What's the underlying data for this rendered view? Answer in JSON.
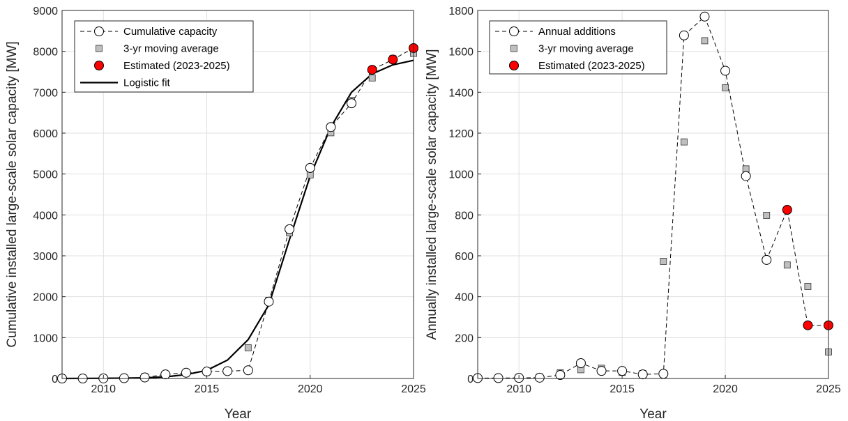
{
  "colors": {
    "estimated": "#ff0000",
    "moving_average": "#bfbfbf",
    "marker_edge": "#000000",
    "dashed_line": "#000000",
    "fit_line": "#000000",
    "grid": "#e0e0e0"
  },
  "chart_data": [
    {
      "type": "line",
      "xlabel": "Year",
      "ylabel": "Cumulative installed large-scale solar capacity [MW]",
      "xlim": [
        2008,
        2025
      ],
      "ylim": [
        0,
        9000
      ],
      "xticks": [
        2010,
        2015,
        2020,
        2025
      ],
      "yticks": [
        0,
        1000,
        2000,
        3000,
        4000,
        5000,
        6000,
        7000,
        8000,
        9000
      ],
      "grid": true,
      "legend_location": "top-left",
      "x": [
        2008,
        2009,
        2010,
        2011,
        2012,
        2013,
        2014,
        2015,
        2016,
        2017,
        2018,
        2019,
        2020,
        2021,
        2022,
        2023,
        2024,
        2025
      ],
      "series": [
        {
          "name": "Cumulative capacity",
          "style": "dashed-line-open-circles",
          "x": [
            2008,
            2009,
            2010,
            2011,
            2012,
            2013,
            2014,
            2015,
            2016,
            2017,
            2018,
            2019,
            2020,
            2021,
            2022,
            2023,
            2024,
            2025
          ],
          "values": [
            0,
            0,
            3,
            8,
            25,
            100,
            140,
            170,
            180,
            200,
            1880,
            3650,
            5150,
            6150,
            6730,
            7550,
            7800,
            8080
          ]
        },
        {
          "name": "3-yr moving average",
          "style": "gray-squares",
          "x": [
            2008,
            2009,
            2010,
            2011,
            2012,
            2013,
            2014,
            2015,
            2016,
            2017,
            2018,
            2019,
            2020,
            2021,
            2022,
            2023,
            2024,
            2025
          ],
          "values": [
            0,
            1,
            5,
            10,
            45,
            85,
            135,
            163,
            183,
            750,
            1910,
            3560,
            4980,
            6010,
            6800,
            7350,
            7820,
            7950
          ]
        },
        {
          "name": "Estimated (2023-2025)",
          "style": "red-circles",
          "x": [
            2023,
            2024,
            2025
          ],
          "values": [
            7550,
            7800,
            8080
          ]
        },
        {
          "name": "Logistic fit",
          "style": "solid-line",
          "x": [
            2008,
            2009,
            2010,
            2011,
            2012,
            2013,
            2014,
            2015,
            2016,
            2017,
            2018,
            2019,
            2020,
            2021,
            2022,
            2023,
            2024,
            2025
          ],
          "values": [
            0,
            2,
            4,
            8,
            15,
            40,
            95,
            200,
            450,
            950,
            1800,
            3400,
            4950,
            6150,
            7000,
            7450,
            7670,
            7780
          ]
        }
      ]
    },
    {
      "type": "line",
      "xlabel": "Year",
      "ylabel": "Annually installed large-scale solar capacity [MW]",
      "xlim": [
        2008,
        2025
      ],
      "ylim": [
        0,
        1800
      ],
      "xticks": [
        2010,
        2015,
        2020,
        2025
      ],
      "yticks": [
        0,
        200,
        400,
        600,
        800,
        1000,
        1200,
        1400,
        1600,
        1800
      ],
      "grid": true,
      "legend_location": "top-left",
      "series": [
        {
          "name": "Annual additions",
          "style": "dashed-line-open-circles",
          "x": [
            2008,
            2009,
            2010,
            2011,
            2012,
            2013,
            2014,
            2015,
            2016,
            2017,
            2018,
            2019,
            2020,
            2021,
            2022,
            2023,
            2024,
            2025
          ],
          "values": [
            2,
            2,
            3,
            4,
            17,
            75,
            37,
            37,
            20,
            23,
            1678,
            1770,
            1505,
            990,
            580,
            825,
            260,
            260
          ]
        },
        {
          "name": "3-yr moving average",
          "style": "gray-squares",
          "x": [
            2008,
            2009,
            2010,
            2011,
            2012,
            2013,
            2014,
            2015,
            2016,
            2017,
            2018,
            2019,
            2020,
            2021,
            2022,
            2023,
            2024,
            2025
          ],
          "values": [
            2,
            2,
            2,
            6,
            28,
            43,
            50,
            30,
            24,
            573,
            1157,
            1652,
            1422,
            1025,
            798,
            555,
            450,
            130
          ]
        },
        {
          "name": "Estimated (2023-2025)",
          "style": "red-circles",
          "x": [
            2023,
            2024,
            2025
          ],
          "values": [
            825,
            260,
            260
          ]
        }
      ]
    }
  ]
}
